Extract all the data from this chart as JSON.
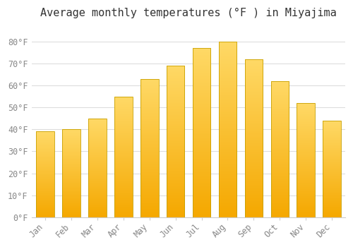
{
  "title": "Average monthly temperatures (°F ) in Miyajima",
  "months": [
    "Jan",
    "Feb",
    "Mar",
    "Apr",
    "May",
    "Jun",
    "Jul",
    "Aug",
    "Sep",
    "Oct",
    "Nov",
    "Dec"
  ],
  "values": [
    39,
    40,
    45,
    55,
    63,
    69,
    77,
    80,
    72,
    62,
    52,
    44
  ],
  "bar_color_bottom": "#F5A800",
  "bar_color_top": "#FFD966",
  "bar_edge_color": "#C8A000",
  "background_color": "#FFFFFF",
  "plot_bg_color": "#FFFFFF",
  "grid_color": "#DDDDDD",
  "ylim": [
    0,
    88
  ],
  "yticks": [
    0,
    10,
    20,
    30,
    40,
    50,
    60,
    70,
    80
  ],
  "title_fontsize": 11,
  "tick_fontsize": 8.5,
  "tick_color": "#888888"
}
